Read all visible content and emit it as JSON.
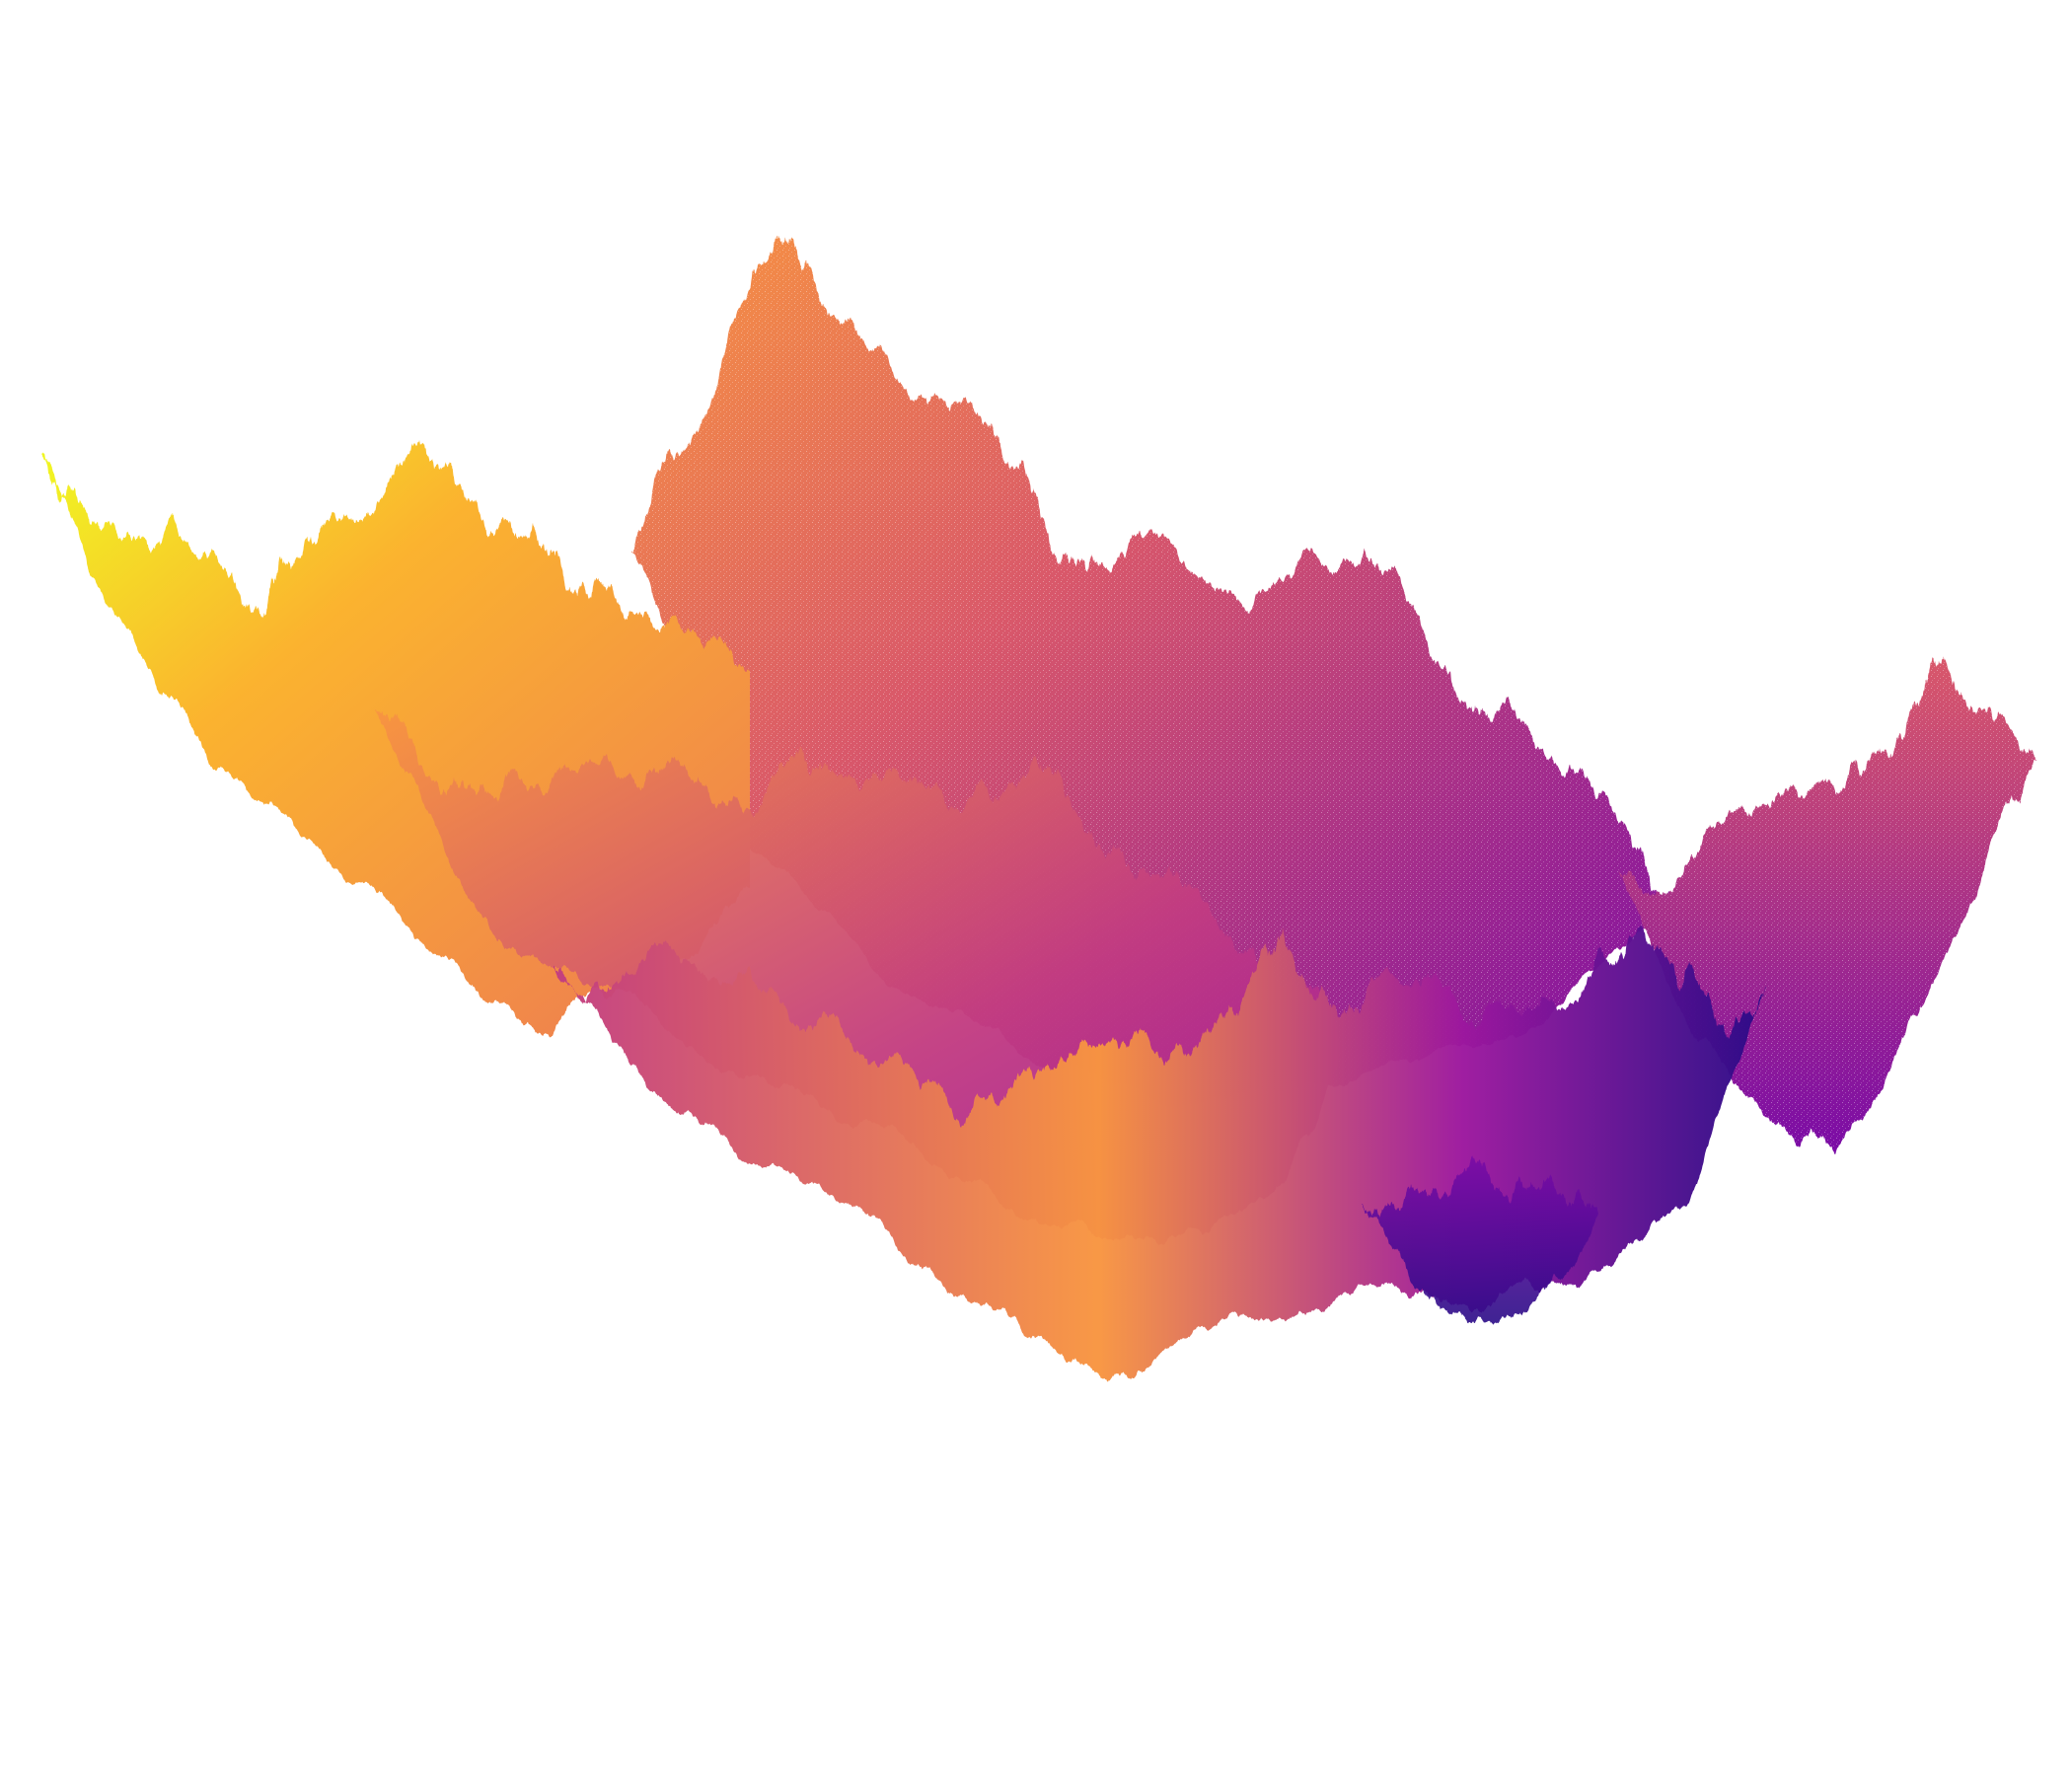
{
  "image": {
    "background": "#ffffff",
    "palette": {
      "deep_purple": "#2a0b87",
      "violet": "#7a0ba6",
      "purple": "#9c179e",
      "magenta": "#c23c81",
      "pink": "#d9586a",
      "coral": "#ed7953",
      "orange": "#f89540",
      "gold": "#fbb32f",
      "yellow": "#f0f921"
    },
    "texture": "fractal-mountain"
  }
}
